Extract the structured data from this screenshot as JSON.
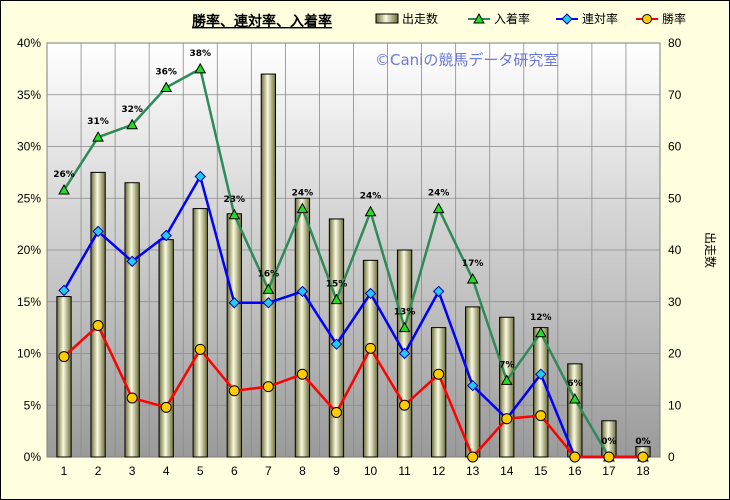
{
  "chart_data": {
    "type": "bar",
    "title": "勝率、連対率、入着率",
    "watermark": "©Caniの競馬データ研究室",
    "categories": [
      "1",
      "2",
      "3",
      "4",
      "5",
      "6",
      "7",
      "8",
      "9",
      "10",
      "11",
      "12",
      "13",
      "14",
      "15",
      "16",
      "17",
      "18"
    ],
    "bar_series": {
      "name": "出走数",
      "axis": "right",
      "values": [
        31,
        55,
        53,
        42,
        48,
        47,
        74,
        50,
        46,
        38,
        40,
        25,
        29,
        27,
        25,
        18,
        7,
        2
      ]
    },
    "line_series": [
      {
        "name": "入着率",
        "color": "#2e8b57",
        "marker": "triangle",
        "marker_color": "#22dd22",
        "values": [
          25.8,
          30.9,
          32.1,
          35.7,
          37.5,
          23.4,
          16.2,
          24.0,
          15.2,
          23.7,
          12.5,
          24.0,
          17.2,
          7.4,
          12.0,
          5.6,
          0.0,
          0.0
        ]
      },
      {
        "name": "連対率",
        "color": "#0000ff",
        "marker": "diamond",
        "marker_color": "#22ccee",
        "values": [
          16.1,
          21.8,
          18.9,
          21.4,
          27.1,
          14.9,
          14.9,
          16.0,
          10.9,
          15.8,
          10.0,
          16.0,
          6.9,
          3.7,
          8.0,
          0.0,
          0.0,
          0.0
        ]
      },
      {
        "name": "勝率",
        "color": "#ff0000",
        "marker": "circle",
        "marker_color": "#ffcc00",
        "values": [
          9.7,
          12.7,
          5.7,
          4.8,
          10.4,
          6.4,
          6.8,
          8.0,
          4.3,
          10.5,
          5.0,
          8.0,
          0.0,
          3.7,
          4.0,
          0.0,
          0.0,
          0.0
        ]
      }
    ],
    "data_labels": [
      "26%",
      "31%",
      "32%",
      "36%",
      "38%",
      "23%",
      "16%",
      "24%",
      "15%",
      "24%",
      "13%",
      "24%",
      "17%",
      "7%",
      "12%",
      "6%",
      "0%",
      "0%"
    ],
    "y_left": {
      "min": 0,
      "max": 40,
      "step": 5,
      "tick_labels": [
        "0%",
        "5%",
        "10%",
        "15%",
        "20%",
        "25%",
        "30%",
        "35%",
        "40%"
      ]
    },
    "y_right": {
      "min": 0,
      "max": 80,
      "step": 10,
      "label": "出走数",
      "tick_labels": [
        "0",
        "10",
        "20",
        "30",
        "40",
        "50",
        "60",
        "70",
        "80"
      ]
    },
    "legend": {
      "placement": "top-right",
      "items": [
        "出走数",
        "入着率",
        "連対率",
        "勝率"
      ]
    },
    "grid": true
  }
}
